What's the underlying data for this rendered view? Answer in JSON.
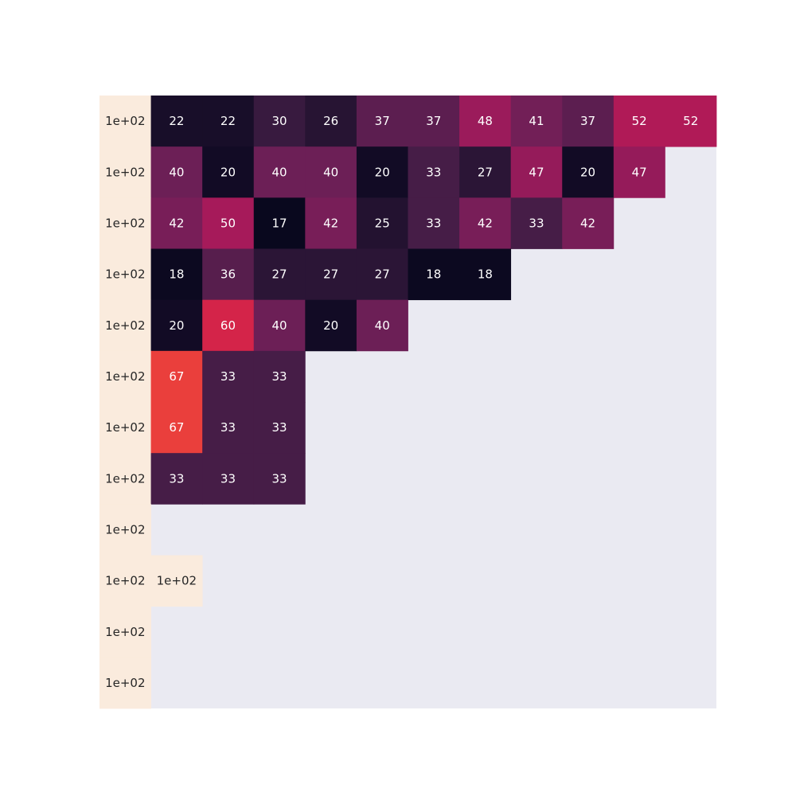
{
  "chart_data": {
    "type": "heatmap",
    "title": "",
    "xlabel": "",
    "ylabel": "",
    "grid": false,
    "legend": "none",
    "colormap": "rocket",
    "value_range": [
      15,
      100
    ],
    "missing_color": "#eaeaf2",
    "rows": [
      [
        100,
        22,
        22,
        30,
        26,
        37,
        37,
        48,
        41,
        37,
        52,
        52
      ],
      [
        100,
        40,
        20,
        40,
        40,
        20,
        33,
        27,
        47,
        20,
        47,
        null
      ],
      [
        100,
        42,
        50,
        17,
        42,
        25,
        33,
        42,
        33,
        42,
        null,
        null
      ],
      [
        100,
        18,
        36,
        27,
        27,
        27,
        18,
        18,
        null,
        null,
        null,
        null
      ],
      [
        100,
        20,
        60,
        40,
        20,
        40,
        null,
        null,
        null,
        null,
        null,
        null
      ],
      [
        100,
        67,
        33,
        33,
        null,
        null,
        null,
        null,
        null,
        null,
        null,
        null
      ],
      [
        100,
        67,
        33,
        33,
        null,
        null,
        null,
        null,
        null,
        null,
        null,
        null
      ],
      [
        100,
        33,
        33,
        33,
        null,
        null,
        null,
        null,
        null,
        null,
        null,
        null
      ],
      [
        100,
        null,
        null,
        null,
        null,
        null,
        null,
        null,
        null,
        null,
        null,
        null
      ],
      [
        100,
        100,
        null,
        null,
        null,
        null,
        null,
        null,
        null,
        null,
        null,
        null
      ],
      [
        100,
        null,
        null,
        null,
        null,
        null,
        null,
        null,
        null,
        null,
        null,
        null
      ],
      [
        100,
        null,
        null,
        null,
        null,
        null,
        null,
        null,
        null,
        null,
        null,
        null
      ]
    ],
    "labels": [
      [
        "1e+02",
        "22",
        "22",
        "30",
        "26",
        "37",
        "37",
        "48",
        "41",
        "37",
        "52",
        "52"
      ],
      [
        "1e+02",
        "40",
        "20",
        "40",
        "40",
        "20",
        "33",
        "27",
        "47",
        "20",
        "47",
        ""
      ],
      [
        "1e+02",
        "42",
        "50",
        "17",
        "42",
        "25",
        "33",
        "42",
        "33",
        "42",
        "",
        ""
      ],
      [
        "1e+02",
        "18",
        "36",
        "27",
        "27",
        "27",
        "18",
        "18",
        "",
        "",
        "",
        ""
      ],
      [
        "1e+02",
        "20",
        "60",
        "40",
        "20",
        "40",
        "",
        "",
        "",
        "",
        "",
        ""
      ],
      [
        "1e+02",
        "67",
        "33",
        "33",
        "",
        "",
        "",
        "",
        "",
        "",
        "",
        ""
      ],
      [
        "1e+02",
        "67",
        "33",
        "33",
        "",
        "",
        "",
        "",
        "",
        "",
        "",
        ""
      ],
      [
        "1e+02",
        "33",
        "33",
        "33",
        "",
        "",
        "",
        "",
        "",
        "",
        "",
        ""
      ],
      [
        "1e+02",
        "",
        "",
        "",
        "",
        "",
        "",
        "",
        "",
        "",
        "",
        ""
      ],
      [
        "1e+02",
        "1e+02",
        "",
        "",
        "",
        "",
        "",
        "",
        "",
        "",
        "",
        ""
      ],
      [
        "1e+02",
        "",
        "",
        "",
        "",
        "",
        "",
        "",
        "",
        "",
        "",
        ""
      ],
      [
        "1e+02",
        "",
        "",
        "",
        "",
        "",
        "",
        "",
        "",
        "",
        "",
        ""
      ]
    ]
  }
}
